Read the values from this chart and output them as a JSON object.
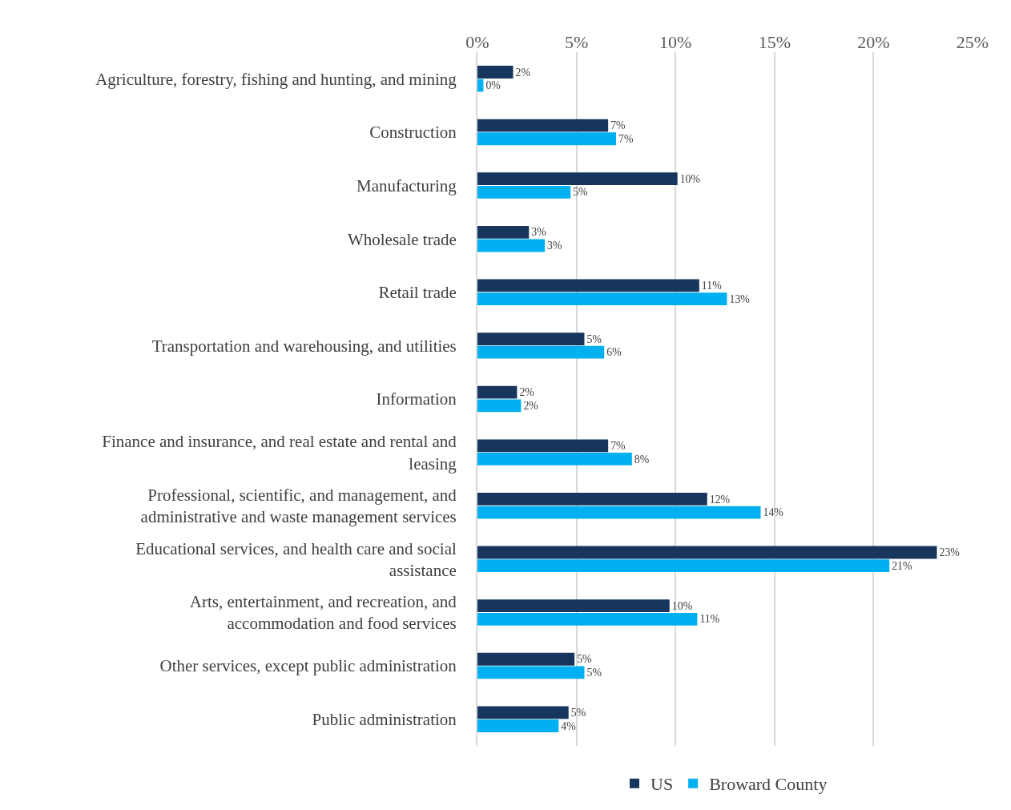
{
  "chart_data": {
    "type": "bar",
    "orientation": "horizontal",
    "categories": [
      "Agriculture, forestry, fishing and hunting, and mining",
      "Construction",
      "Manufacturing",
      "Wholesale trade",
      "Retail trade",
      "Transportation and warehousing, and utilities",
      "Information",
      "Finance and insurance, and real estate and rental and leasing",
      "Professional, scientific, and management, and administrative and waste management services",
      "Educational services, and health care and social assistance",
      "Arts, entertainment, and recreation, and accommodation and food services",
      "Other services, except public administration",
      "Public administration"
    ],
    "series": [
      {
        "name": "US",
        "color": "#17365d",
        "values": [
          1.8,
          6.6,
          10.1,
          2.6,
          11.2,
          5.4,
          2.0,
          6.6,
          11.6,
          23.2,
          9.7,
          4.9,
          4.6
        ],
        "value_labels": [
          "2%",
          "7%",
          "10%",
          "3%",
          "11%",
          "5%",
          "2%",
          "7%",
          "12%",
          "23%",
          "10%",
          "5%",
          "5%"
        ]
      },
      {
        "name": "Broward County",
        "color": "#00b0f0",
        "values": [
          0.3,
          7.0,
          4.7,
          3.4,
          12.6,
          6.4,
          2.2,
          7.8,
          14.3,
          20.8,
          11.1,
          5.4,
          4.1
        ],
        "value_labels": [
          "0%",
          "7%",
          "5%",
          "3%",
          "13%",
          "6%",
          "2%",
          "8%",
          "14%",
          "21%",
          "11%",
          "5%",
          "4%"
        ]
      }
    ],
    "xlim": [
      0,
      25
    ],
    "xticks": [
      {
        "value": 0,
        "label": "0%"
      },
      {
        "value": 5,
        "label": "5%"
      },
      {
        "value": 10,
        "label": "10%"
      },
      {
        "value": 15,
        "label": "15%"
      },
      {
        "value": 20,
        "label": "20%"
      },
      {
        "value": 25,
        "label": "25%"
      }
    ],
    "grid": "x",
    "legend": "bottom"
  }
}
